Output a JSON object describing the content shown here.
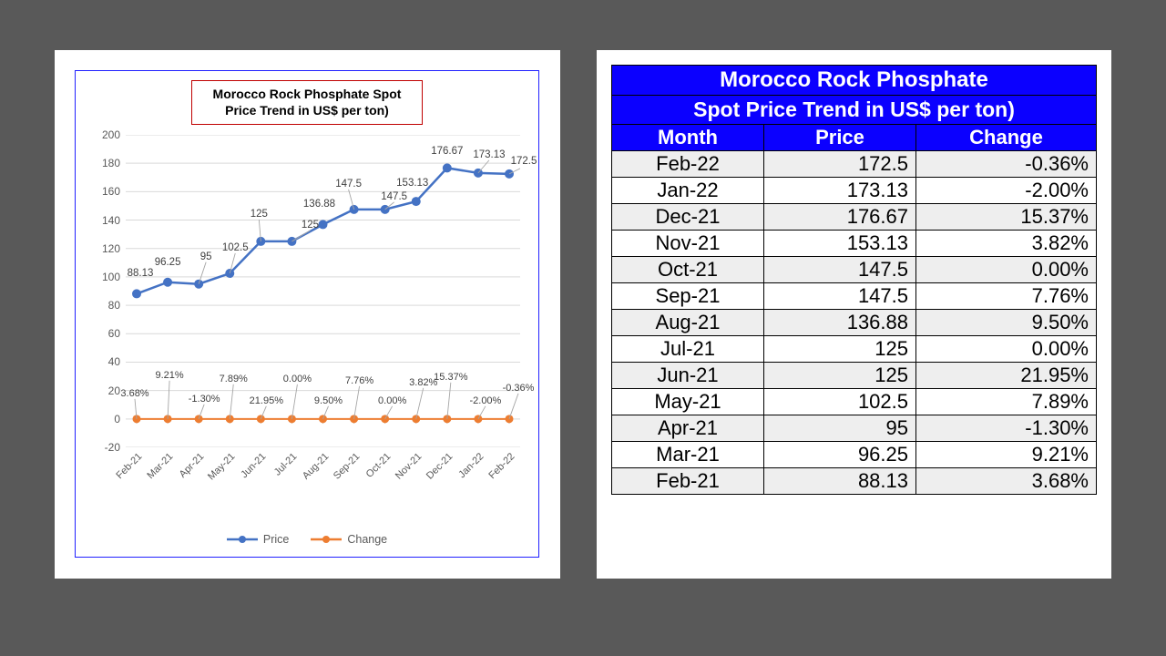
{
  "background_color": "#595959",
  "panel_bg": "#ffffff",
  "chart": {
    "type": "line",
    "border_color": "#2020ff",
    "title": "Morocco Rock Phosphate Spot Price Trend in US$ per ton)",
    "title_border_color": "#c00000",
    "title_fontsize": 14,
    "ylim": [
      -20,
      200
    ],
    "ytick_step": 20,
    "yticks": [
      -20,
      0,
      20,
      40,
      60,
      80,
      100,
      120,
      140,
      160,
      180,
      200
    ],
    "x_categories": [
      "Feb-21",
      "Mar-21",
      "Apr-21",
      "May-21",
      "Jun-21",
      "Jul-21",
      "Aug-21",
      "Sep-21",
      "Oct-21",
      "Nov-21",
      "Dec-21",
      "Jan-22",
      "Feb-22"
    ],
    "x_fontsize": 11,
    "y_fontsize": 12,
    "gridline_color": "#d9d9d9",
    "axis_color": "#bfbfbf",
    "label_color": "#595959",
    "series": [
      {
        "name": "Price",
        "color": "#4472c4",
        "line_width": 2.5,
        "marker": "circle",
        "marker_size": 5,
        "values": [
          88.13,
          96.25,
          95,
          102.5,
          125,
          125,
          136.88,
          147.5,
          147.5,
          153.13,
          176.67,
          173.13,
          172.5
        ],
        "value_labels": [
          "88.13",
          "96.25",
          "95",
          "102.5",
          "125",
          "125",
          "136.88",
          "147.5",
          "147.5",
          "153.13",
          "176.67",
          "173.13",
          "172.5"
        ],
        "label_offsets": [
          {
            "dx": 4,
            "dy": -22
          },
          {
            "dx": 0,
            "dy": -22
          },
          {
            "dx": 8,
            "dy": -30
          },
          {
            "dx": 6,
            "dy": -28
          },
          {
            "dx": -2,
            "dy": -30
          },
          {
            "dx": 20,
            "dy": -18
          },
          {
            "dx": -4,
            "dy": -22
          },
          {
            "dx": -6,
            "dy": -28
          },
          {
            "dx": 10,
            "dy": -14
          },
          {
            "dx": -4,
            "dy": -20
          },
          {
            "dx": 0,
            "dy": -18
          },
          {
            "dx": 12,
            "dy": -20
          },
          {
            "dx": 16,
            "dy": -14
          }
        ]
      },
      {
        "name": "Change",
        "color": "#ed7d31",
        "line_width": 2,
        "marker": "circle",
        "marker_size": 4.5,
        "values": [
          0,
          0,
          0,
          0,
          0,
          0,
          0,
          0,
          0,
          0,
          0,
          0,
          0
        ],
        "value_labels": [
          "3.68%",
          "9.21%",
          "-1.30%",
          "7.89%",
          "21.95%",
          "0.00%",
          "9.50%",
          "7.76%",
          "0.00%",
          "3.82%",
          "15.37%",
          "-2.00%",
          "-0.36%"
        ],
        "leader_lines": true,
        "label_offsets": [
          {
            "dx": -2,
            "dy": -28
          },
          {
            "dx": 2,
            "dy": -48
          },
          {
            "dx": 6,
            "dy": -22
          },
          {
            "dx": 4,
            "dy": -44
          },
          {
            "dx": 6,
            "dy": -20
          },
          {
            "dx": 6,
            "dy": -44
          },
          {
            "dx": 6,
            "dy": -20
          },
          {
            "dx": 6,
            "dy": -42
          },
          {
            "dx": 8,
            "dy": -20
          },
          {
            "dx": 8,
            "dy": -40
          },
          {
            "dx": 4,
            "dy": -46
          },
          {
            "dx": 8,
            "dy": -20
          },
          {
            "dx": 10,
            "dy": -34
          }
        ]
      }
    ],
    "legend": {
      "price_label": "Price",
      "change_label": "Change"
    }
  },
  "table": {
    "title_line1": "Morocco Rock Phosphate",
    "title_line2": "Spot Price Trend in US$ per ton)",
    "header_bg": "#0b00ff",
    "header_fg": "#ffffff",
    "alt_row_bg": "#eeeeee",
    "border_color": "#000000",
    "fontsize": 22,
    "columns": [
      "Month",
      "Price",
      "Change"
    ],
    "rows": [
      {
        "month": "Feb-22",
        "price": "172.5",
        "change": "-0.36%",
        "alt": true
      },
      {
        "month": "Jan-22",
        "price": "173.13",
        "change": "-2.00%",
        "alt": false
      },
      {
        "month": "Dec-21",
        "price": "176.67",
        "change": "15.37%",
        "alt": true
      },
      {
        "month": "Nov-21",
        "price": "153.13",
        "change": "3.82%",
        "alt": false
      },
      {
        "month": "Oct-21",
        "price": "147.5",
        "change": "0.00%",
        "alt": true
      },
      {
        "month": "Sep-21",
        "price": "147.5",
        "change": "7.76%",
        "alt": false
      },
      {
        "month": "Aug-21",
        "price": "136.88",
        "change": "9.50%",
        "alt": true
      },
      {
        "month": "Jul-21",
        "price": "125",
        "change": "0.00%",
        "alt": false
      },
      {
        "month": "Jun-21",
        "price": "125",
        "change": "21.95%",
        "alt": true
      },
      {
        "month": "May-21",
        "price": "102.5",
        "change": "7.89%",
        "alt": false
      },
      {
        "month": "Apr-21",
        "price": "95",
        "change": "-1.30%",
        "alt": true
      },
      {
        "month": "Mar-21",
        "price": "96.25",
        "change": "9.21%",
        "alt": false
      },
      {
        "month": "Feb-21",
        "price": "88.13",
        "change": "3.68%",
        "alt": true
      }
    ]
  }
}
